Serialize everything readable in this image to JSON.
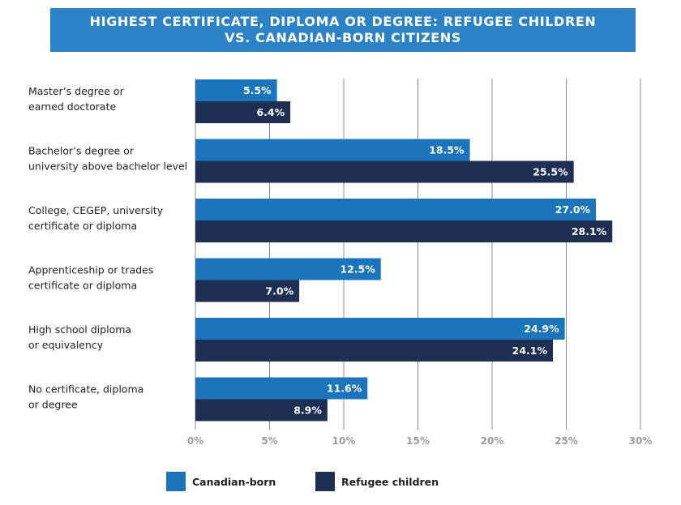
{
  "chart_data": {
    "type": "bar",
    "orientation": "horizontal",
    "title_lines": [
      "HIGHEST CERTIFICATE, DIPLOMA OR DEGREE: REFUGEE CHILDREN",
      "VS. CANADIAN-BORN CITIZENS"
    ],
    "categories": [
      [
        "Master’s degree or",
        "earned doctorate"
      ],
      [
        "Bachelor’s degree or",
        "university above bachelor level"
      ],
      [
        "College, CEGEP, university",
        "certificate or diploma"
      ],
      [
        "Apprenticeship or trades",
        "certificate or diploma"
      ],
      [
        "High school diploma",
        "or equivalency"
      ],
      [
        "No certificate, diploma",
        "or degree"
      ]
    ],
    "series": [
      {
        "name": "Canadian-born",
        "color": "#1b75bc",
        "values": [
          5.5,
          18.5,
          27.0,
          12.5,
          24.9,
          11.6
        ],
        "labels": [
          "5.5%",
          "18.5%",
          "27.0%",
          "12.5%",
          "24.9%",
          "11.6%"
        ]
      },
      {
        "name": "Refugee children",
        "color": "#1d3054",
        "values": [
          6.4,
          25.5,
          28.1,
          7.0,
          24.1,
          8.9
        ],
        "labels": [
          "6.4%",
          "25.5%",
          "28.1%",
          "7.0%",
          "24.1%",
          "8.9%"
        ]
      }
    ],
    "x_ticks": [
      "0%",
      "5%",
      "10%",
      "15%",
      "20%",
      "25%",
      "30%"
    ],
    "xlim": [
      0,
      30
    ],
    "grid": true,
    "legend_position": "bottom",
    "colors": {
      "banner": "#2b82c6",
      "grid": "#8c8c8c"
    }
  }
}
